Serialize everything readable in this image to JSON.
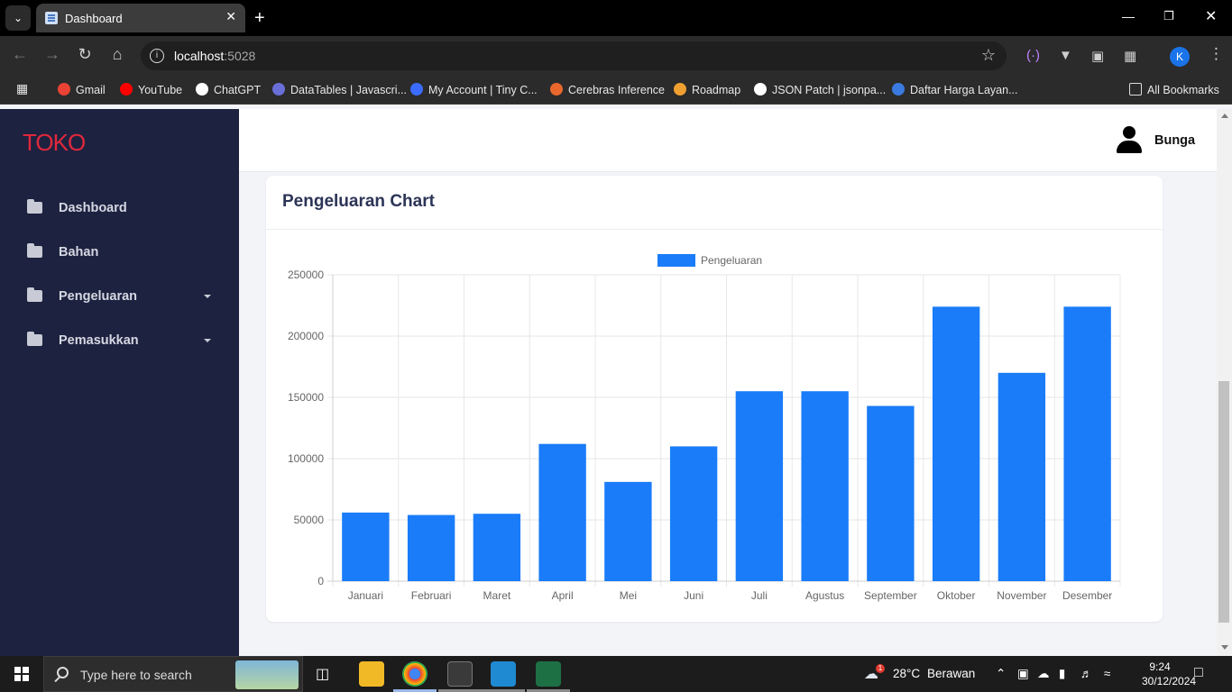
{
  "browser": {
    "tab_title": "Dashboard",
    "url_host": "localhost",
    "url_port": ":5028",
    "profile_initial": "K",
    "bookmarks": [
      {
        "label": "Gmail",
        "color": "#ea4335"
      },
      {
        "label": "YouTube",
        "color": "#ff0000"
      },
      {
        "label": "ChatGPT",
        "color": "#ffffff"
      },
      {
        "label": "DataTables | Javascri...",
        "color": "#6a6fd8"
      },
      {
        "label": "My Account | Tiny C...",
        "color": "#3b6cff"
      },
      {
        "label": "Cerebras Inference",
        "color": "#e8672c"
      },
      {
        "label": "Roadmap",
        "color": "#f0a030"
      },
      {
        "label": "JSON Patch | jsonpa...",
        "color": "#ffffff"
      },
      {
        "label": "Daftar Harga Layan...",
        "color": "#3b7ae0"
      }
    ],
    "all_bookmarks": "All Bookmarks"
  },
  "sidebar": {
    "brand": "TOKO",
    "items": [
      {
        "label": "Dashboard",
        "has_caret": false
      },
      {
        "label": "Bahan",
        "has_caret": false
      },
      {
        "label": "Pengeluaran",
        "has_caret": true
      },
      {
        "label": "Pemasukkan",
        "has_caret": true
      }
    ]
  },
  "header": {
    "user_name": "Bunga"
  },
  "card": {
    "title": "Pengeluaran Chart"
  },
  "chart_data": {
    "type": "bar",
    "categories": [
      "Januari",
      "Februari",
      "Maret",
      "April",
      "Mei",
      "Juni",
      "Juli",
      "Agustus",
      "September",
      "Oktober",
      "November",
      "Desember"
    ],
    "series": [
      {
        "name": "Pengeluaran",
        "color": "#1a7cf8",
        "values": [
          56000,
          54000,
          55000,
          112000,
          81000,
          110000,
          155000,
          155000,
          143000,
          224000,
          170000,
          224000
        ]
      }
    ],
    "ylim": [
      0,
      250000
    ],
    "yticks": [
      0,
      50000,
      100000,
      150000,
      200000,
      250000
    ],
    "grid": true,
    "legend": "top-center"
  },
  "taskbar": {
    "search_placeholder": "Type here to search",
    "weather_temp": "28°C",
    "weather_text": "Berawan",
    "weather_badge": "1",
    "time": "9:24",
    "date": "30/12/2024"
  }
}
